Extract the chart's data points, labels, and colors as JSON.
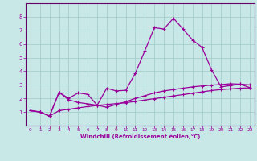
{
  "xlabel": "Windchill (Refroidissement éolien,°C)",
  "xlim": [
    -0.5,
    23.5
  ],
  "ylim": [
    0,
    9
  ],
  "xticks": [
    0,
    1,
    2,
    3,
    4,
    5,
    6,
    7,
    8,
    9,
    10,
    11,
    12,
    13,
    14,
    15,
    16,
    17,
    18,
    19,
    20,
    21,
    22,
    23
  ],
  "yticks": [
    1,
    2,
    3,
    4,
    5,
    6,
    7,
    8
  ],
  "bg_color": "#c8e8e8",
  "grid_color": "#a0c8c8",
  "line_color": "#990099",
  "spine_color": "#660066",
  "line1_x": [
    0,
    1,
    2,
    3,
    4,
    5,
    6,
    7,
    8,
    9,
    10,
    11,
    12,
    13,
    14,
    15,
    16,
    17,
    18,
    19,
    20,
    21,
    22,
    23
  ],
  "line1_y": [
    1.1,
    1.0,
    0.7,
    2.45,
    2.0,
    2.4,
    2.3,
    1.5,
    2.75,
    2.55,
    2.6,
    3.85,
    5.5,
    7.2,
    7.1,
    7.9,
    7.1,
    6.3,
    5.75,
    4.1,
    2.85,
    2.95,
    3.05,
    2.8
  ],
  "line2_x": [
    0,
    1,
    2,
    3,
    4,
    5,
    6,
    7,
    8,
    9,
    10,
    11,
    12,
    13,
    14,
    15,
    16,
    17,
    18,
    19,
    20,
    21,
    22,
    23
  ],
  "line2_y": [
    1.1,
    1.0,
    0.7,
    2.45,
    1.9,
    1.7,
    1.6,
    1.5,
    1.35,
    1.55,
    1.75,
    2.0,
    2.2,
    2.4,
    2.55,
    2.65,
    2.75,
    2.85,
    2.92,
    2.98,
    3.02,
    3.08,
    3.05,
    3.0
  ],
  "line3_x": [
    0,
    1,
    2,
    3,
    4,
    5,
    6,
    7,
    8,
    9,
    10,
    11,
    12,
    13,
    14,
    15,
    16,
    17,
    18,
    19,
    20,
    21,
    22,
    23
  ],
  "line3_y": [
    1.1,
    1.0,
    0.7,
    1.1,
    1.2,
    1.3,
    1.4,
    1.48,
    1.55,
    1.62,
    1.68,
    1.78,
    1.88,
    1.98,
    2.08,
    2.18,
    2.28,
    2.38,
    2.48,
    2.58,
    2.65,
    2.7,
    2.75,
    2.78
  ]
}
